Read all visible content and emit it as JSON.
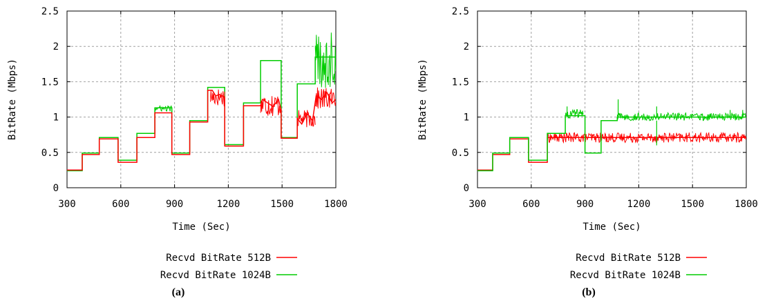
{
  "chart_data": [
    {
      "type": "line",
      "caption": "(a)",
      "xlabel": "Time (Sec)",
      "ylabel": "BitRate (Mbps)",
      "xlim": [
        300,
        1800
      ],
      "ylim": [
        0,
        2.5
      ],
      "xticks": [
        300,
        600,
        900,
        1200,
        1500,
        1800
      ],
      "yticks": [
        0,
        0.5,
        1,
        1.5,
        2,
        2.5
      ],
      "ytick_labels": [
        "0",
        "0.5",
        "1",
        "1.5",
        "2",
        "2.5"
      ],
      "grid": true,
      "legend_position": "bottom",
      "series": [
        {
          "name": "Recvd BitRate 512B",
          "color": "#ff0000",
          "points": [
            [
              300,
              0.25
            ],
            [
              385,
              0.25
            ],
            [
              385,
              0.47
            ],
            [
              480,
              0.47
            ],
            [
              480,
              0.69
            ],
            [
              585,
              0.69
            ],
            [
              585,
              0.36
            ],
            [
              690,
              0.36
            ],
            [
              690,
              0.71
            ],
            [
              790,
              0.71
            ],
            [
              790,
              1.06
            ],
            [
              885,
              1.06
            ],
            [
              885,
              0.47
            ],
            [
              985,
              0.47
            ],
            [
              985,
              0.93
            ],
            [
              1085,
              0.93
            ],
            [
              1085,
              1.38
            ],
            [
              1110,
              1.38
            ],
            [
              1130,
              1.3
            ],
            [
              1150,
              1.32
            ],
            [
              1180,
              1.28
            ],
            [
              1180,
              0.59
            ],
            [
              1285,
              0.59
            ],
            [
              1285,
              1.16
            ],
            [
              1380,
              1.16
            ],
            [
              1390,
              1.25
            ],
            [
              1420,
              1.2
            ],
            [
              1450,
              1.15
            ],
            [
              1480,
              1.25
            ],
            [
              1495,
              1.1
            ],
            [
              1495,
              0.7
            ],
            [
              1585,
              0.7
            ],
            [
              1585,
              0.98
            ],
            [
              1610,
              0.9
            ],
            [
              1640,
              1.05
            ],
            [
              1670,
              0.95
            ],
            [
              1690,
              1.3
            ],
            [
              1720,
              1.25
            ],
            [
              1750,
              1.35
            ],
            [
              1780,
              1.2
            ],
            [
              1800,
              1.25
            ]
          ],
          "noisy_segments": [
            {
              "x": [
                1100,
                1180
              ],
              "y": [
                1.15,
                1.42
              ]
            },
            {
              "x": [
                1380,
                1495
              ],
              "y": [
                1.0,
                1.35
              ]
            },
            {
              "x": [
                1590,
                1685
              ],
              "y": [
                0.85,
                1.1
              ]
            },
            {
              "x": [
                1685,
                1800
              ],
              "y": [
                1.1,
                1.42
              ]
            }
          ]
        },
        {
          "name": "Recvd BitRate 1024B",
          "color": "#00cc00",
          "points": [
            [
              300,
              0.24
            ],
            [
              385,
              0.24
            ],
            [
              385,
              0.49
            ],
            [
              480,
              0.49
            ],
            [
              480,
              0.71
            ],
            [
              585,
              0.71
            ],
            [
              585,
              0.39
            ],
            [
              690,
              0.39
            ],
            [
              690,
              0.77
            ],
            [
              790,
              0.77
            ],
            [
              790,
              1.13
            ],
            [
              885,
              1.13
            ],
            [
              885,
              0.49
            ],
            [
              985,
              0.49
            ],
            [
              985,
              0.95
            ],
            [
              1085,
              0.95
            ],
            [
              1085,
              1.42
            ],
            [
              1180,
              1.42
            ],
            [
              1180,
              0.61
            ],
            [
              1285,
              0.61
            ],
            [
              1285,
              1.2
            ],
            [
              1380,
              1.2
            ],
            [
              1380,
              1.8
            ],
            [
              1495,
              1.8
            ],
            [
              1495,
              0.71
            ],
            [
              1585,
              0.71
            ],
            [
              1585,
              1.47
            ],
            [
              1685,
              1.47
            ],
            [
              1685,
              1.85
            ],
            [
              1800,
              1.85
            ]
          ],
          "noisy_segments": [
            {
              "x": [
                790,
                885
              ],
              "y": [
                1.08,
                1.16
              ]
            },
            {
              "x": [
                1685,
                1800
              ],
              "y": [
                1.4,
                2.22
              ]
            }
          ]
        }
      ]
    },
    {
      "type": "line",
      "caption": "(b)",
      "xlabel": "Time (Sec)",
      "ylabel": "BitRate (Mbps)",
      "xlim": [
        300,
        1800
      ],
      "ylim": [
        0,
        2.5
      ],
      "xticks": [
        300,
        600,
        900,
        1200,
        1500,
        1800
      ],
      "yticks": [
        0,
        0.5,
        1,
        1.5,
        2,
        2.5
      ],
      "ytick_labels": [
        "0",
        "0.5",
        "1",
        "1.5",
        "2",
        "2.5"
      ],
      "grid": true,
      "legend_position": "bottom",
      "series": [
        {
          "name": "Recvd BitRate 512B",
          "color": "#ff0000",
          "points": [
            [
              300,
              0.25
            ],
            [
              385,
              0.25
            ],
            [
              385,
              0.47
            ],
            [
              480,
              0.47
            ],
            [
              480,
              0.69
            ],
            [
              585,
              0.69
            ],
            [
              585,
              0.36
            ],
            [
              690,
              0.36
            ],
            [
              690,
              0.71
            ],
            [
              1800,
              0.71
            ]
          ],
          "noisy_segments": [
            {
              "x": [
                690,
                1800
              ],
              "y": [
                0.64,
                0.78
              ]
            }
          ]
        },
        {
          "name": "Recvd BitRate 1024B",
          "color": "#00cc00",
          "points": [
            [
              300,
              0.24
            ],
            [
              385,
              0.24
            ],
            [
              385,
              0.49
            ],
            [
              480,
              0.49
            ],
            [
              480,
              0.71
            ],
            [
              585,
              0.71
            ],
            [
              585,
              0.39
            ],
            [
              690,
              0.39
            ],
            [
              690,
              0.77
            ],
            [
              790,
              0.77
            ],
            [
              790,
              1.02
            ],
            [
              900,
              1.02
            ],
            [
              900,
              0.49
            ],
            [
              990,
              0.49
            ],
            [
              990,
              0.95
            ],
            [
              1080,
              0.95
            ],
            [
              1080,
              1.0
            ],
            [
              1800,
              1.0
            ]
          ],
          "noisy_segments": [
            {
              "x": [
                790,
                890
              ],
              "y": [
                0.97,
                1.12
              ]
            },
            {
              "x": [
                1080,
                1800
              ],
              "y": [
                0.95,
                1.06
              ]
            }
          ],
          "spikes": [
            [
              800,
              1.15
            ],
            [
              1085,
              1.25
            ],
            [
              1300,
              1.15
            ],
            [
              1300,
              0.6
            ],
            [
              1710,
              1.1
            ],
            [
              1780,
              1.1
            ]
          ]
        }
      ]
    }
  ]
}
